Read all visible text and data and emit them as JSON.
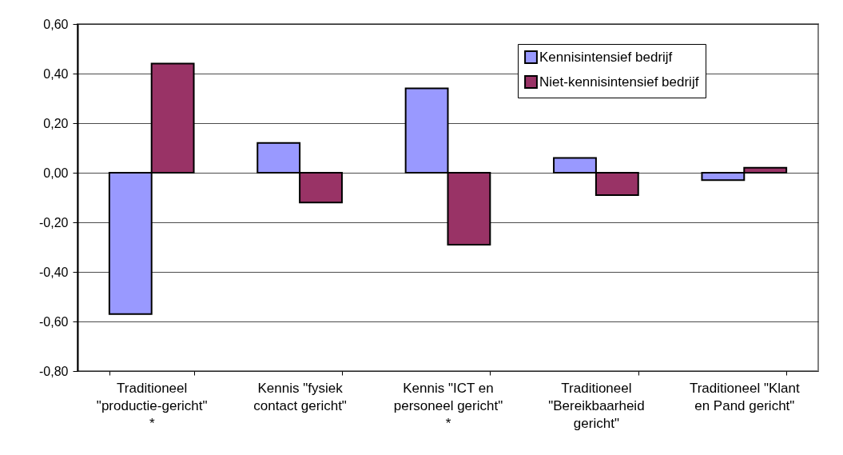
{
  "chart_data": {
    "type": "bar",
    "categories": [
      "Traditioneel \"productie-gericht\" *",
      "Kennis \"fysiek contact gericht\"",
      "Kennis \"ICT en personeel gericht\" *",
      "Traditioneel \"Bereikbaarheid gericht\"",
      "Traditioneel \"Klant en Pand gericht\""
    ],
    "series": [
      {
        "name": "Kennisintensief bedrijf",
        "color": "#9999ff",
        "values": [
          -0.57,
          0.12,
          0.34,
          0.06,
          -0.03
        ]
      },
      {
        "name": "Niet-kennisintensief bedrijf",
        "color": "#993366",
        "values": [
          0.44,
          -0.12,
          -0.29,
          -0.09,
          0.02
        ]
      }
    ],
    "ylim": [
      -0.8,
      0.6
    ],
    "yticks": [
      {
        "value": -0.8,
        "label": "-0,80"
      },
      {
        "value": -0.6,
        "label": "-0,60"
      },
      {
        "value": -0.4,
        "label": "-0,40"
      },
      {
        "value": -0.2,
        "label": "-0,20"
      },
      {
        "value": 0,
        "label": "0,00"
      },
      {
        "value": 0.2,
        "label": "0,20"
      },
      {
        "value": 0.4,
        "label": "0,40"
      },
      {
        "value": 0.6,
        "label": "0,60"
      }
    ],
    "grid": "y",
    "legend": "top right"
  }
}
